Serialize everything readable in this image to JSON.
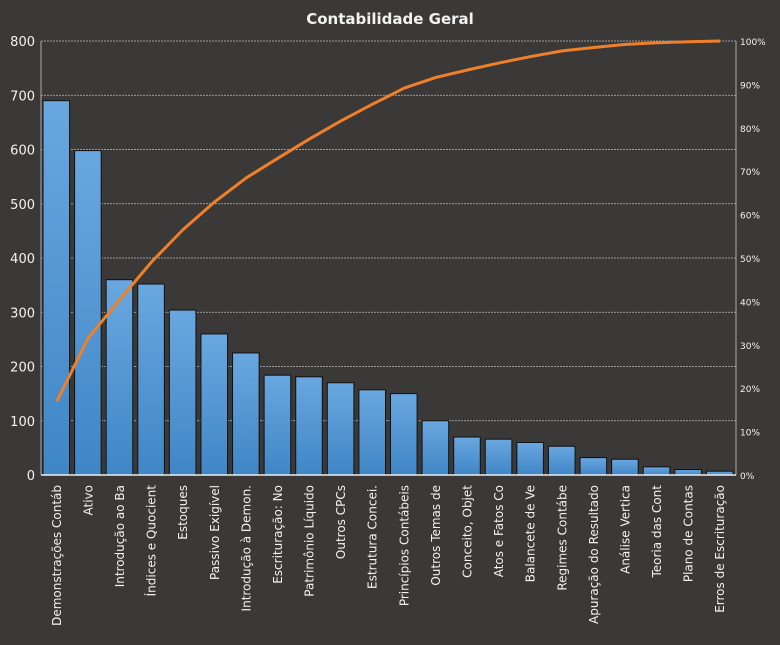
{
  "chart_data": {
    "type": "bar",
    "title": "Contabilidade  Geral",
    "categories": [
      "Demonstrações Contáb",
      "Ativo",
      "Introdução  ao Ba",
      "Índices e Quocient",
      "Estoques",
      "Passivo Exigível",
      "Introdução à Demon.",
      "Escrituração: No",
      "Patrimônio Líquido",
      "Outros CPCs",
      "Estrutura Concei.",
      "Princípios Contábeis",
      "Outros Temas de",
      "Conceito, Objet",
      "Atos e Fatos Co",
      "Balancete de Ve",
      "Regimes Contábe",
      "Apuração do Resultado",
      "Análise Vertica",
      "Teoria das Cont",
      "Plano de Contas",
      "Erros de Escrituração"
    ],
    "values": [
      690,
      598,
      360,
      352,
      304,
      260,
      225,
      184,
      181,
      170,
      157,
      150,
      100,
      70,
      66,
      60,
      53,
      32,
      29,
      15,
      10,
      7
    ],
    "line_series": "cumulative percent",
    "ylim": [
      0,
      800
    ],
    "yticks": [
      "0",
      "100",
      "200",
      "300",
      "400",
      "500",
      "600",
      "700",
      "800"
    ],
    "y2lim": [
      0,
      100
    ],
    "y2ticks": [
      "0%",
      "10%",
      "20%",
      "30%",
      "40%",
      "50%",
      "60%",
      "70%",
      "80%",
      "90%",
      "100%"
    ],
    "grid": true,
    "colors": {
      "bar": "#4a90d2",
      "line": "#f07f2a",
      "bg": "#3a3938"
    }
  }
}
